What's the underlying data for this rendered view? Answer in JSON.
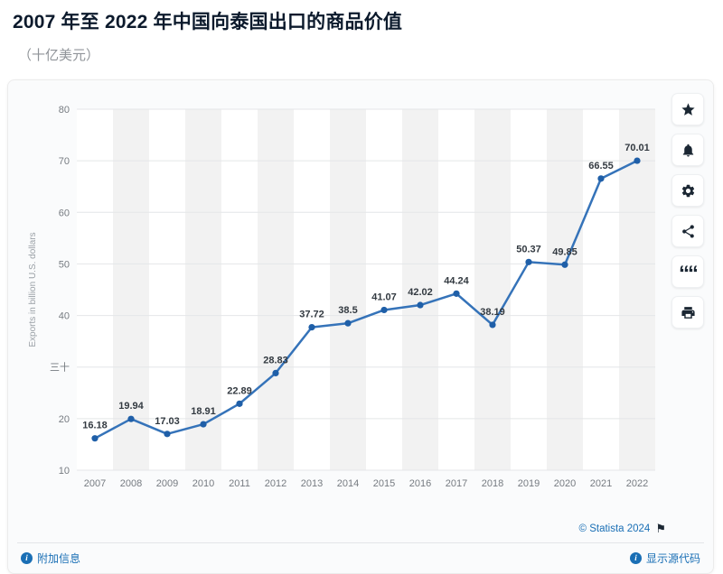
{
  "header": {
    "title": "2007 年至 2022 年中国向泰国出口的商品价值",
    "subtitle": "（十亿美元）"
  },
  "chart_data": {
    "type": "line",
    "title": "2007 年至 2022 年中国向泰国出口的商品价值",
    "subtitle": "（十亿美元）",
    "xlabel": "",
    "ylabel": "Exports in billion U.S. dollars",
    "categories": [
      "2007",
      "2008",
      "2009",
      "2010",
      "2011",
      "2012",
      "2013",
      "2014",
      "2015",
      "2016",
      "2017",
      "2018",
      "2019",
      "2020",
      "2021",
      "2022"
    ],
    "values": [
      16.18,
      19.94,
      17.03,
      18.91,
      22.89,
      28.83,
      37.72,
      38.5,
      41.07,
      42.02,
      44.24,
      38.19,
      50.37,
      49.85,
      66.55,
      70.01
    ],
    "point_labels": [
      "16.18",
      "19.94",
      "17.03",
      "18.91",
      "22.89",
      "28.83",
      "37.72",
      "38.5",
      "41.07",
      "42.02",
      "44.24",
      "38.19",
      "50.37",
      "49.85",
      "66.55",
      "70.01"
    ],
    "ylim": [
      10,
      80
    ],
    "yticks": [
      10,
      20,
      30,
      40,
      50,
      60,
      70,
      80
    ],
    "ytick_labels": [
      "10",
      "20",
      "三十",
      "40",
      "50",
      "60",
      "70",
      "80"
    ],
    "grid": true,
    "legend": "none",
    "line_color": "#3573b9",
    "point_color": "#1f5fa8",
    "band_color": "#f2f2f2"
  },
  "toolbar": {
    "buttons": [
      "favorite",
      "notifications",
      "settings",
      "share",
      "cite",
      "print"
    ]
  },
  "icons": {
    "flag_glyph": "⚑",
    "quote_glyph": "““",
    "info_glyph": "i"
  },
  "footer": {
    "copyright": "© Statista 2024",
    "additional_info": "附加信息",
    "show_source": "显示源代码"
  }
}
